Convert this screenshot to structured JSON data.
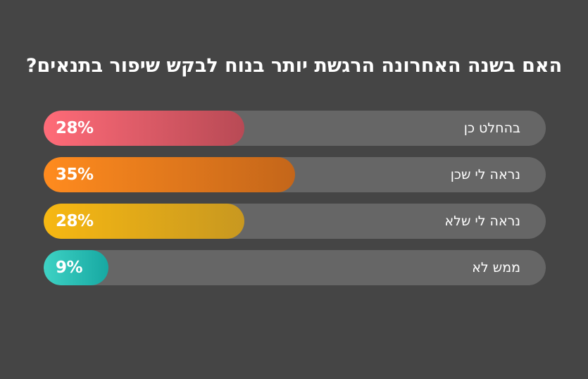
{
  "title": "האם בשנה האחרונה הרגשת יותר בנוח לבקש שיפור בתנאים?",
  "chart_data": {
    "type": "bar",
    "orientation": "horizontal",
    "title": "האם בשנה האחרונה הרגשת יותר בנוח לבקש שיפור בתנאים?",
    "categories": [
      "בהחלט כן",
      "נראה לי שכן",
      "נראה לי שלא",
      "ממש לא"
    ],
    "values": [
      28,
      35,
      28,
      9
    ],
    "value_labels": [
      "28%",
      "35%",
      "28%",
      "9%"
    ],
    "unit": "%",
    "xlim": [
      0,
      70
    ],
    "grid": false,
    "legend": "none",
    "colors": [
      [
        "#ff6b78",
        "#b84a55"
      ],
      [
        "#ff8b1e",
        "#c4661a"
      ],
      [
        "#f7b812",
        "#c89820"
      ],
      [
        "#3ed2c4",
        "#17a8a2"
      ]
    ],
    "track_color": "#666666"
  }
}
